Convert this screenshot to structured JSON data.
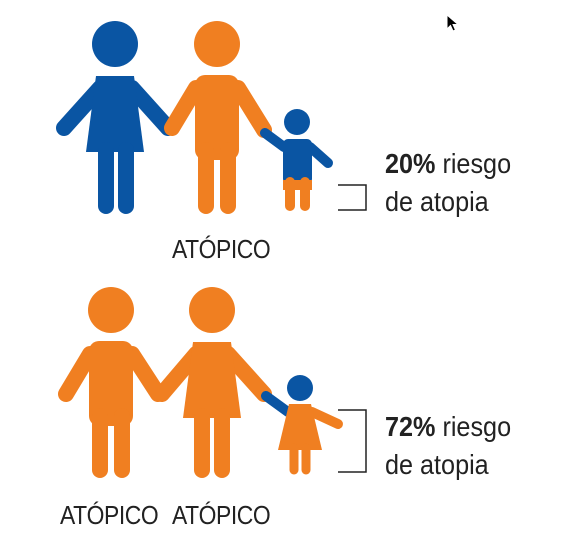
{
  "colors": {
    "blue": "#0a55a3",
    "orange": "#f07f21",
    "text": "#222222"
  },
  "rows": [
    {
      "parent_labels": [
        "ATÓPICO"
      ],
      "risk_value": "20%",
      "risk_text": " riesgo",
      "risk_line2": "de atopia"
    },
    {
      "parent_labels": [
        "ATÓPICO",
        "ATÓPICO"
      ],
      "risk_value": "72%",
      "risk_text": " riesgo",
      "risk_line2": "de atopia"
    }
  ],
  "icons": [
    "mother-figure",
    "father-figure",
    "child-figure",
    "bracket",
    "mouse-cursor-icon"
  ]
}
